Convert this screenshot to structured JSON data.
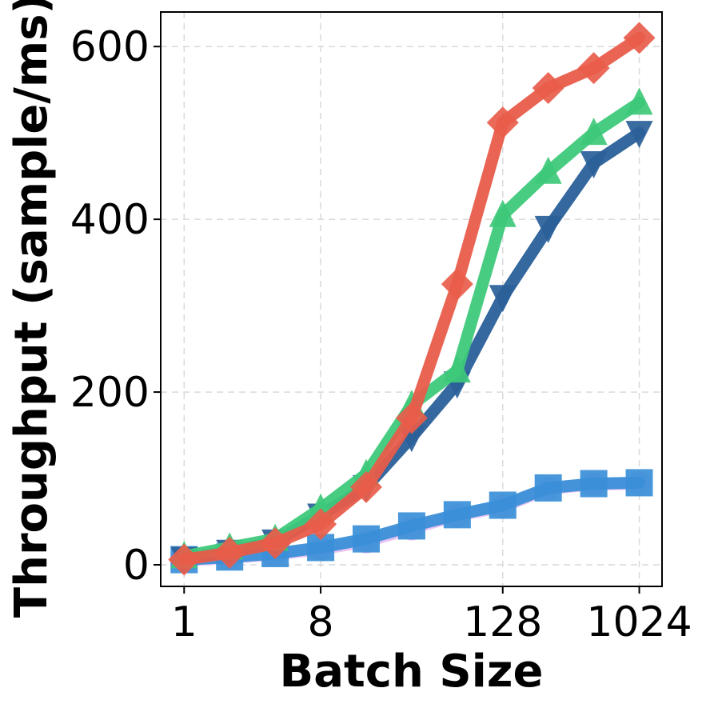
{
  "chart_data": {
    "type": "line",
    "title": "",
    "xlabel": "Batch Size",
    "ylabel": "Throughput (sample/ms)",
    "x": [
      1,
      2,
      4,
      8,
      16,
      32,
      64,
      128,
      256,
      512,
      1024
    ],
    "xscale": "log2",
    "xlim": [
      0.7,
      1448
    ],
    "ylim": [
      -25,
      640
    ],
    "xticks": [
      1,
      8,
      128,
      1024
    ],
    "xtick_labels": [
      "1",
      "8",
      "128",
      "1024"
    ],
    "yticks": [
      0,
      200,
      400,
      600
    ],
    "ytick_labels": [
      "0",
      "200",
      "400",
      "600"
    ],
    "grid": true,
    "series": [
      {
        "color": "#e8c0f0",
        "marker": "circle",
        "values": [
          5,
          8,
          12,
          18,
          27,
          42,
          57,
          67,
          88,
          93,
          94
        ]
      },
      {
        "color": "#3a8fd8",
        "marker": "square",
        "values": [
          6,
          9,
          13,
          20,
          30,
          45,
          58,
          69,
          89,
          94,
          95
        ]
      },
      {
        "color": "#2a6099",
        "marker": "triangle-down",
        "values": [
          7,
          15,
          27,
          57,
          90,
          148,
          210,
          310,
          390,
          465,
          500
        ]
      },
      {
        "color": "#3ec97a",
        "marker": "triangle-up",
        "values": [
          10,
          20,
          30,
          65,
          105,
          185,
          225,
          405,
          455,
          500,
          535
        ]
      },
      {
        "color": "#e85c4a",
        "marker": "diamond",
        "values": [
          6,
          14,
          25,
          47,
          90,
          170,
          325,
          512,
          552,
          575,
          610
        ]
      }
    ]
  }
}
